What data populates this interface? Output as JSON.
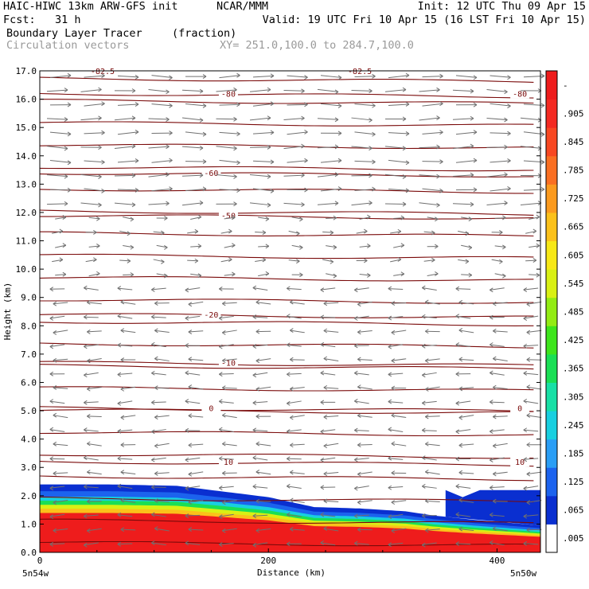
{
  "header": {
    "model": "HAIC-HIWC 13km ARW-GFS init",
    "center": "NCAR/MMM",
    "init": "Init: 12 UTC Thu 09 Apr 15",
    "fcst": "Fcst:   31 h",
    "valid": "Valid: 19 UTC Fri 10 Apr 15 (16 LST Fri 10 Apr 15)",
    "field": "Boundary Layer Tracer",
    "units": "(fraction)",
    "vectors": "Circulation vectors",
    "xy": "XY= 251.0,100.0 to 284.7,100.0"
  },
  "chart_data": {
    "type": "heatmap",
    "title": "Boundary Layer Tracer (fraction)",
    "xlabel": "Distance (km)",
    "ylabel": "Height (km)",
    "xlim": [
      0,
      438
    ],
    "ylim": [
      0,
      17
    ],
    "x_ticks": [
      "0",
      "200",
      "400"
    ],
    "x_end_labels": [
      "5n54w",
      "5n50w"
    ],
    "y_ticks": [
      "0.0",
      "1.0",
      "2.0",
      "3.0",
      "4.0",
      "5.0",
      "6.0",
      "7.0",
      "8.0",
      "9.0",
      "10.0",
      "11.0",
      "12.0",
      "13.0",
      "14.0",
      "15.0",
      "16.0",
      "17.0"
    ],
    "colorbar": {
      "labels": [
        ".005",
        ".065",
        ".125",
        ".185",
        ".245",
        ".305",
        ".365",
        ".425",
        ".485",
        ".545",
        ".605",
        ".665",
        ".725",
        ".785",
        ".845",
        ".905",
        "-"
      ],
      "colors": [
        "#ffffff",
        "#0a2fd0",
        "#1c63ee",
        "#2a9ef5",
        "#18cfe0",
        "#18e0a6",
        "#1adf55",
        "#3ee51c",
        "#93ec14",
        "#d9f014",
        "#f7e816",
        "#fbc11a",
        "#fb9a1e",
        "#fa6f22",
        "#f84822",
        "#f42a22",
        "#ee1c1c"
      ]
    },
    "tracer_top_km": [
      [
        0,
        2.4
      ],
      [
        60,
        2.4
      ],
      [
        120,
        2.35
      ],
      [
        150,
        2.2
      ],
      [
        200,
        1.95
      ],
      [
        240,
        1.6
      ],
      [
        280,
        1.55
      ],
      [
        320,
        1.45
      ],
      [
        345,
        1.3
      ],
      [
        380,
        1.15
      ],
      [
        438,
        0.95
      ]
    ],
    "tracer_blue_upper_km": [
      [
        355,
        2.2
      ],
      [
        370,
        1.95
      ],
      [
        385,
        2.2
      ],
      [
        438,
        2.2
      ]
    ],
    "temperature_contours": [
      {
        "label": "-80",
        "height_km": 16.2
      },
      {
        "label": "-60",
        "height_km": 13.4
      },
      {
        "label": "-50",
        "height_km": 11.9
      },
      {
        "label": "-20",
        "height_km": 8.4
      },
      {
        "label": "-10",
        "height_km": 6.7
      },
      {
        "label": "0",
        "height_km": 5.1
      },
      {
        "label": "10",
        "height_km": 3.2
      }
    ],
    "top_partial_labels": [
      "-82.5",
      "-82.5"
    ],
    "vector_field": [
      {
        "from_km": 12.0,
        "to_km": 17.0,
        "direction": "eastward",
        "strength": 1.0
      },
      {
        "from_km": 9.5,
        "to_km": 12.0,
        "direction": "eastward",
        "strength": 0.35
      },
      {
        "from_km": 0.0,
        "to_km": 9.5,
        "direction": "westward",
        "strength": 0.6
      }
    ]
  }
}
